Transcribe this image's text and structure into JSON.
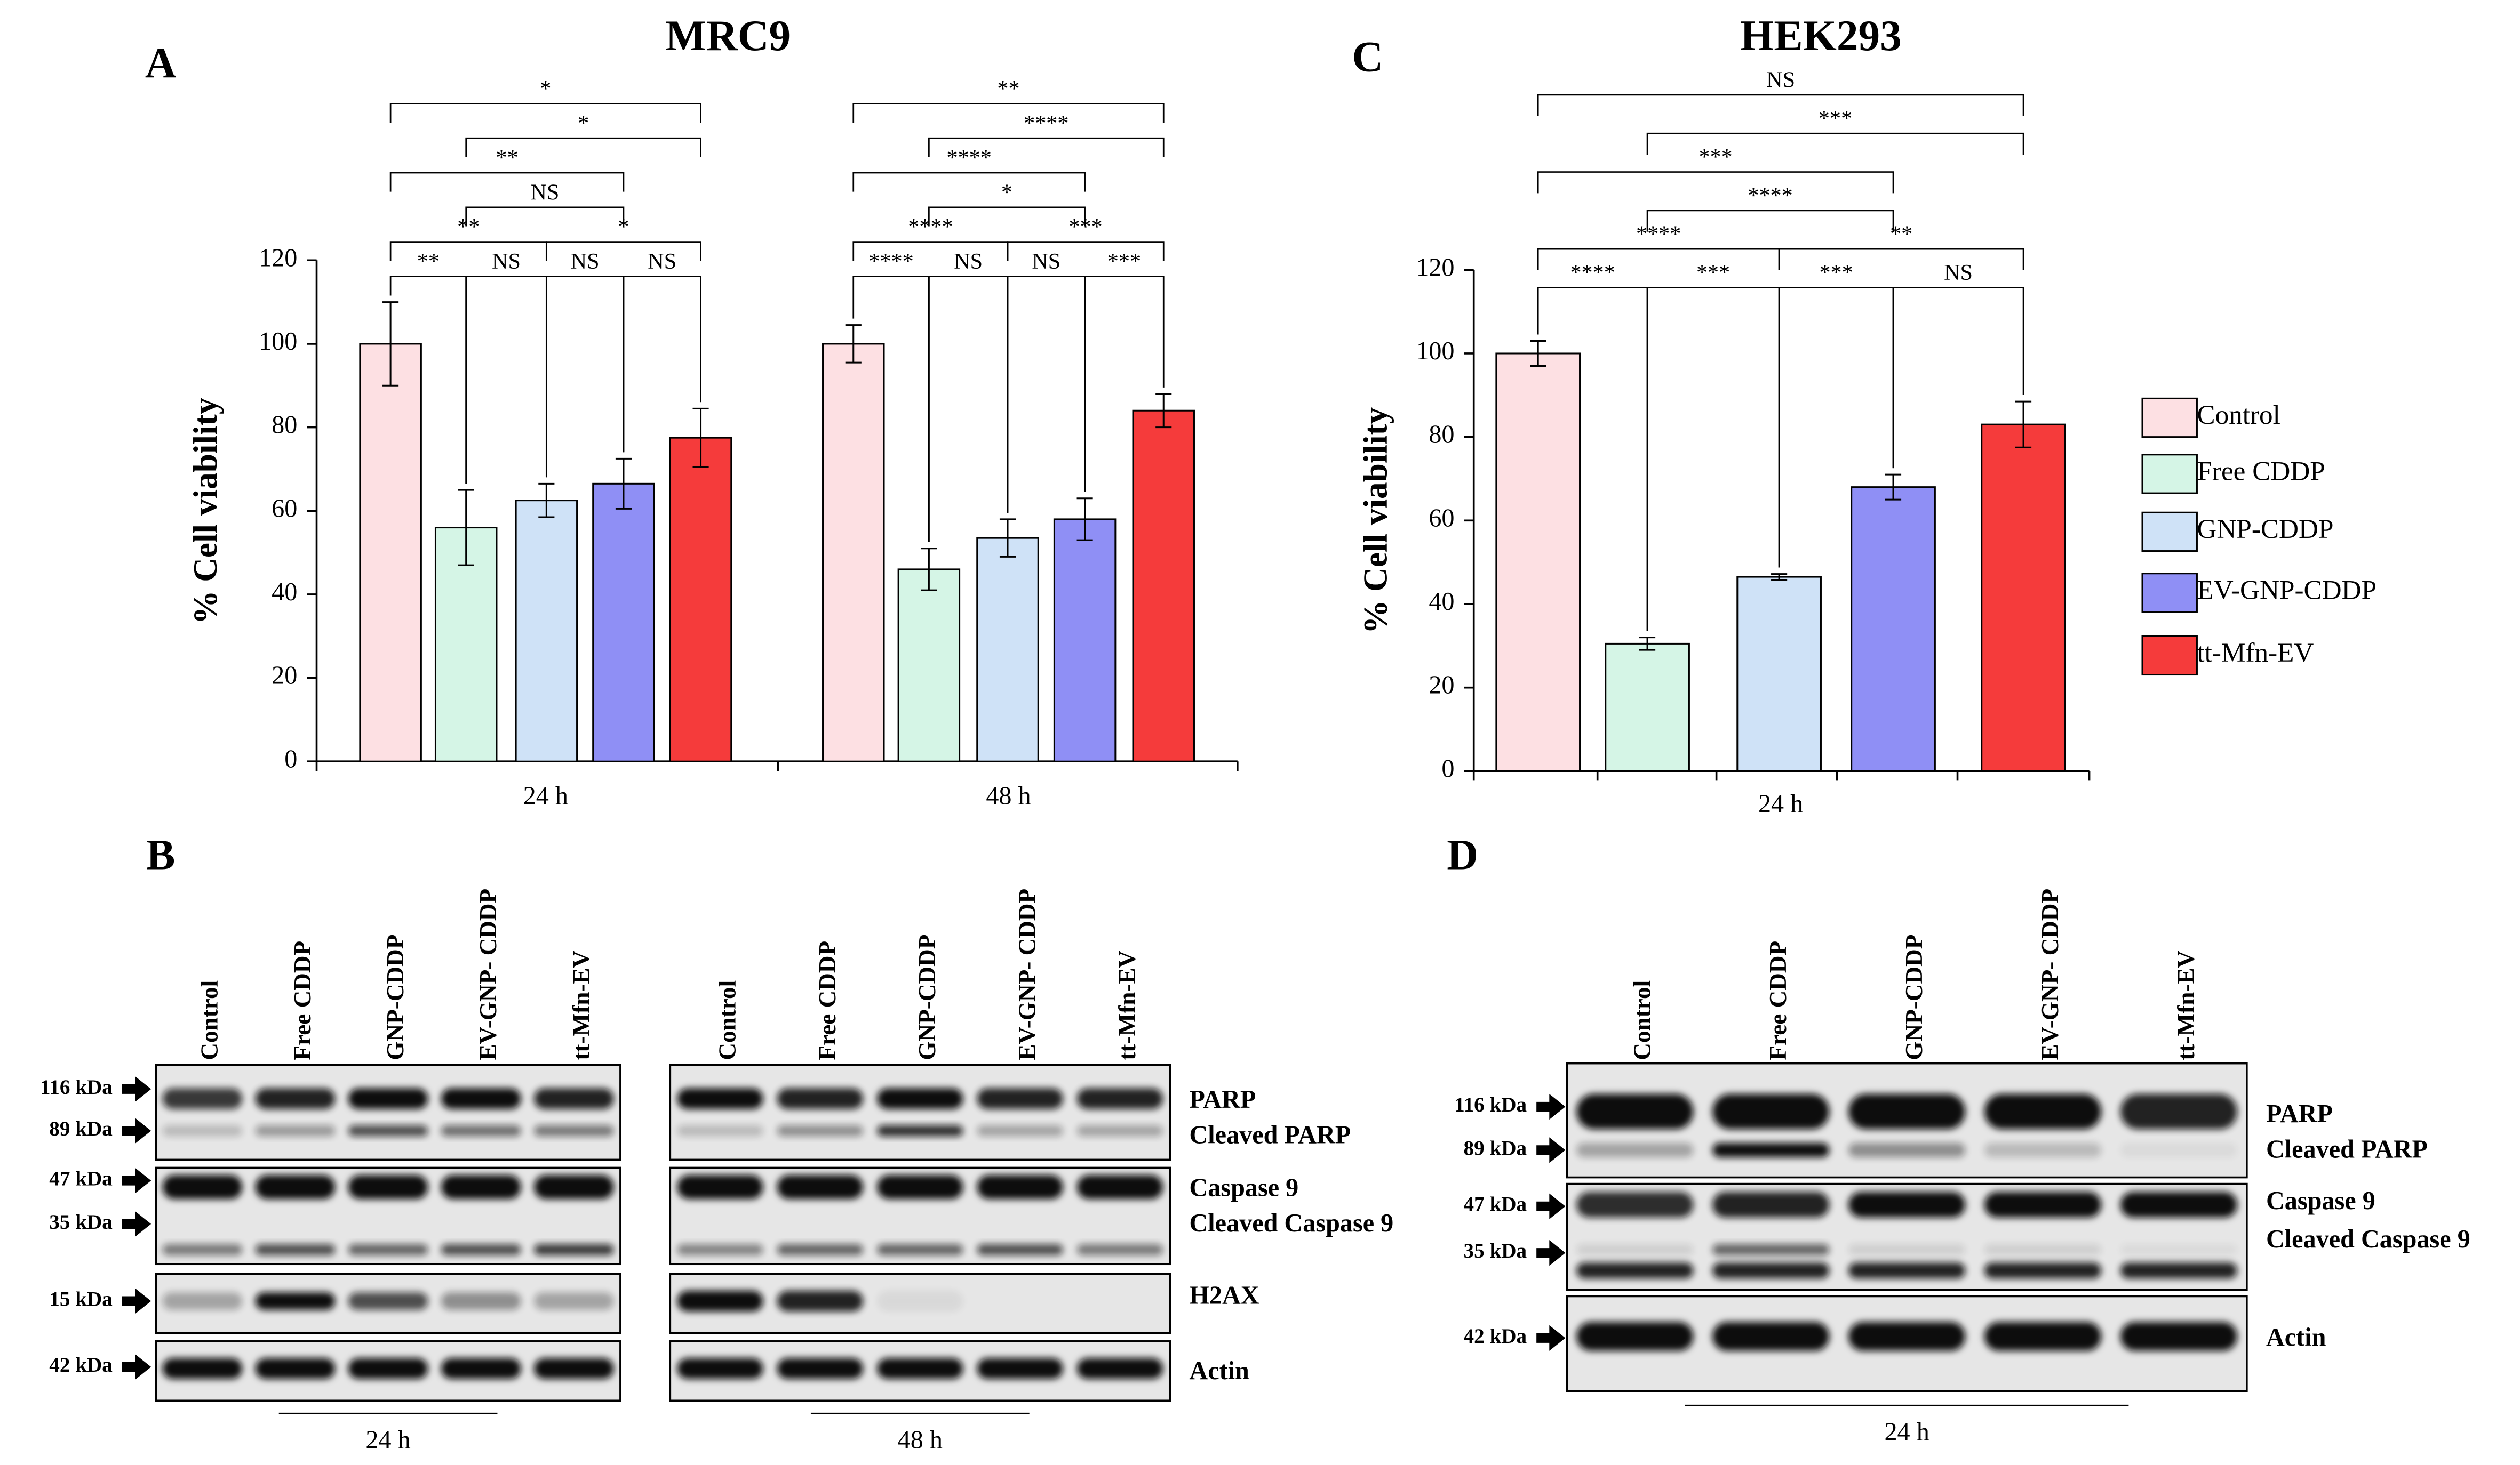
{
  "chart_data": [
    {
      "type": "bar",
      "panel": "A",
      "title": "MRC9",
      "ylabel": "% Cell viability",
      "categories": [
        "24 h",
        "48 h"
      ],
      "ylim": [
        0,
        120
      ],
      "yticks": [
        0,
        20,
        40,
        60,
        80,
        100,
        120
      ],
      "series": [
        {
          "color": "#fde0e3",
          "values": [
            100,
            100
          ],
          "errors": [
            10,
            4.5
          ]
        },
        {
          "color": "#d5f5e6",
          "values": [
            56,
            46
          ],
          "errors": [
            9,
            5
          ]
        },
        {
          "color": "#cfe2f7",
          "values": [
            62.5,
            53.5
          ],
          "errors": [
            4,
            4.5
          ]
        },
        {
          "color": "#8f8ff5",
          "values": [
            66.5,
            58
          ],
          "errors": [
            6,
            5
          ]
        },
        {
          "color": "#f53b3b",
          "values": [
            77.5,
            84
          ],
          "errors": [
            7,
            4
          ]
        }
      ],
      "comparisons": [
        {
          "category": 0,
          "from": 0,
          "to": 1,
          "label": "**"
        },
        {
          "category": 0,
          "from": 1,
          "to": 2,
          "label": "NS"
        },
        {
          "category": 0,
          "from": 2,
          "to": 3,
          "label": "NS"
        },
        {
          "category": 0,
          "from": 3,
          "to": 4,
          "label": "NS"
        },
        {
          "category": 0,
          "from": 0,
          "to": 2,
          "label": "**"
        },
        {
          "category": 0,
          "from": 2,
          "to": 4,
          "label": "*"
        },
        {
          "category": 0,
          "from": 1,
          "to": 3,
          "label": "NS"
        },
        {
          "category": 0,
          "from": 0,
          "to": 3,
          "label": "**"
        },
        {
          "category": 0,
          "from": 1,
          "to": 4,
          "label": "*"
        },
        {
          "category": 0,
          "from": 0,
          "to": 4,
          "label": "*"
        },
        {
          "category": 1,
          "from": 0,
          "to": 1,
          "label": "****"
        },
        {
          "category": 1,
          "from": 1,
          "to": 2,
          "label": "NS"
        },
        {
          "category": 1,
          "from": 2,
          "to": 3,
          "label": "NS"
        },
        {
          "category": 1,
          "from": 3,
          "to": 4,
          "label": "***"
        },
        {
          "category": 1,
          "from": 0,
          "to": 2,
          "label": "****"
        },
        {
          "category": 1,
          "from": 2,
          "to": 4,
          "label": "***"
        },
        {
          "category": 1,
          "from": 1,
          "to": 3,
          "label": "*"
        },
        {
          "category": 1,
          "from": 0,
          "to": 3,
          "label": "****"
        },
        {
          "category": 1,
          "from": 1,
          "to": 4,
          "label": "****"
        },
        {
          "category": 1,
          "from": 0,
          "to": 4,
          "label": "**"
        }
      ]
    },
    {
      "type": "bar",
      "panel": "C",
      "title": "HEK293",
      "ylabel": "% Cell viability",
      "categories": [
        "24 h"
      ],
      "ylim": [
        0,
        120
      ],
      "yticks": [
        0,
        20,
        40,
        60,
        80,
        100,
        120
      ],
      "legend": "right",
      "series": [
        {
          "name": "Control",
          "color": "#fde0e3",
          "values": [
            100
          ],
          "errors": [
            3
          ]
        },
        {
          "name": "Free CDDP",
          "color": "#d5f5e6",
          "values": [
            30.5
          ],
          "errors": [
            1.5
          ]
        },
        {
          "name": "GNP-CDDP",
          "color": "#cfe2f7",
          "values": [
            46.5
          ],
          "errors": [
            0.7
          ]
        },
        {
          "name": "EV-GNP-CDDP",
          "color": "#8f8ff5",
          "values": [
            68
          ],
          "errors": [
            3
          ]
        },
        {
          "name": "tt-Mfn-EV",
          "color": "#f53b3b",
          "values": [
            83
          ],
          "errors": [
            5.5
          ]
        }
      ],
      "comparisons": [
        {
          "category": 0,
          "from": 0,
          "to": 1,
          "label": "****"
        },
        {
          "category": 0,
          "from": 1,
          "to": 2,
          "label": "***"
        },
        {
          "category": 0,
          "from": 2,
          "to": 3,
          "label": "***"
        },
        {
          "category": 0,
          "from": 3,
          "to": 4,
          "label": "NS"
        },
        {
          "category": 0,
          "from": 0,
          "to": 2,
          "label": "****"
        },
        {
          "category": 0,
          "from": 2,
          "to": 4,
          "label": "**"
        },
        {
          "category": 0,
          "from": 1,
          "to": 3,
          "label": "****"
        },
        {
          "category": 0,
          "from": 0,
          "to": 3,
          "label": "***"
        },
        {
          "category": 0,
          "from": 1,
          "to": 4,
          "label": "***"
        },
        {
          "category": 0,
          "from": 0,
          "to": 4,
          "label": "NS"
        }
      ]
    }
  ],
  "blots": [
    {
      "panel": "B",
      "groups": [
        {
          "label": "24 h",
          "lanes": [
            "Control",
            "Free CDDP",
            "GNP-CDDP",
            "EV-GNP- CDDP",
            "tt-Mfn-EV"
          ]
        },
        {
          "label": "48 h",
          "lanes": [
            "Control",
            "Free CDDP",
            "GNP-CDDP",
            "EV-GNP- CDDP",
            "tt-Mfn-EV"
          ]
        }
      ],
      "markers": [
        "116 kDa",
        "89 kDa",
        "47 kDa",
        "35 kDa",
        "15 kDa",
        "42 kDa"
      ],
      "proteins": [
        "PARP",
        "Cleaved PARP",
        "Caspase 9",
        "Cleaved Caspase 9",
        "H2AX",
        "Actin"
      ]
    },
    {
      "panel": "D",
      "groups": [
        {
          "label": "24 h",
          "lanes": [
            "Control",
            "Free CDDP",
            "GNP-CDDP",
            "EV-GNP- CDDP",
            "tt-Mfn-EV"
          ]
        }
      ],
      "markers": [
        "116 kDa",
        "89 kDa",
        "47 kDa",
        "35 kDa",
        "42 kDa"
      ],
      "proteins": [
        "PARP",
        "Cleaved PARP",
        "Caspase 9",
        "Cleaved Caspase 9",
        "Actin"
      ]
    }
  ]
}
